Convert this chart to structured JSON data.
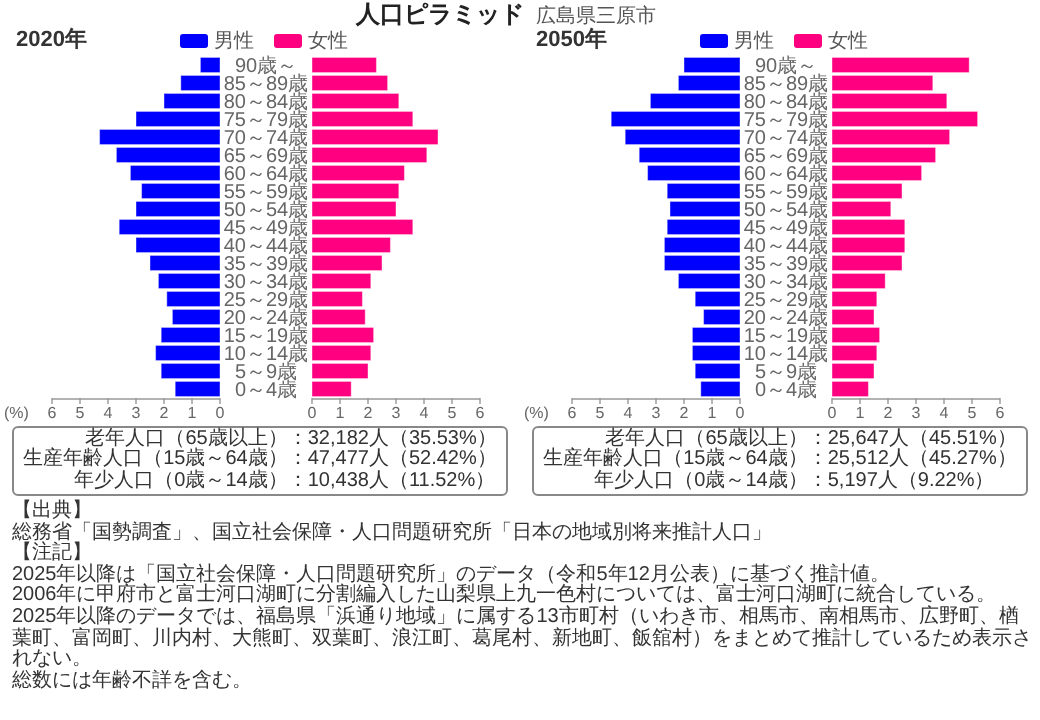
{
  "chart_data": [
    {
      "type": "other",
      "title": "人口ピラミッド",
      "subtitle": "広島県三原市"
    },
    {
      "type": "bar",
      "orientation": "horizontal",
      "title": "2020年",
      "legend": "top",
      "annotations": [
        "(%)"
      ],
      "xlim": [
        6,
        0
      ],
      "xticks": [
        6,
        5,
        4,
        3,
        2,
        1,
        0
      ],
      "categories": [
        "90歳～",
        "85～89歳",
        "80～84歳",
        "75～79歳",
        "70～74歳",
        "65～69歳",
        "60～64歳",
        "55～59歳",
        "50～54歳",
        "45～49歳",
        "40～44歳",
        "35～39歳",
        "30～34歳",
        "25～29歳",
        "20～24歳",
        "15～19歳",
        "10～14歳",
        "5～9歳",
        "0～4歳"
      ],
      "series": [
        {
          "name": "男性",
          "color": "#0000ff",
          "values": [
            0.7,
            1.4,
            2.0,
            3.0,
            4.3,
            3.7,
            3.2,
            2.8,
            3.0,
            3.6,
            3.0,
            2.5,
            2.2,
            1.9,
            1.7,
            2.1,
            2.3,
            2.1,
            1.6
          ]
        }
      ]
    },
    {
      "type": "bar",
      "orientation": "horizontal",
      "legend": "top",
      "xlim": [
        0,
        6
      ],
      "xticks": [
        0,
        1,
        2,
        3,
        4,
        5,
        6
      ],
      "categories": [
        null,
        null,
        null,
        null,
        null,
        null,
        null,
        null,
        null,
        null,
        null,
        null,
        null,
        null,
        null,
        null,
        null,
        null,
        null
      ],
      "series": [
        {
          "name": "女性",
          "color": "#ff0080",
          "values": [
            2.3,
            2.7,
            3.1,
            3.6,
            4.5,
            4.1,
            3.3,
            3.1,
            3.0,
            3.6,
            2.8,
            2.5,
            2.1,
            1.8,
            1.9,
            2.2,
            2.1,
            2.0,
            1.4
          ]
        }
      ]
    },
    {
      "type": "bar",
      "orientation": "horizontal",
      "title": "2050年",
      "legend": "top",
      "annotations": [
        "(%)"
      ],
      "xlim": [
        6,
        0
      ],
      "xticks": [
        6,
        5,
        4,
        3,
        2,
        1,
        0
      ],
      "categories": [
        "90歳～",
        "85～89歳",
        "80～84歳",
        "75～79歳",
        "70～74歳",
        "65～69歳",
        "60～64歳",
        "55～59歳",
        "50～54歳",
        "45～49歳",
        "40～44歳",
        "35～39歳",
        "30～34歳",
        "25～29歳",
        "20～24歳",
        "15～19歳",
        "10～14歳",
        "5～9歳",
        "0～4歳"
      ],
      "series": [
        {
          "name": "男性",
          "color": "#0000ff",
          "values": [
            2.0,
            2.2,
            3.2,
            4.6,
            4.1,
            3.6,
            3.3,
            2.6,
            2.5,
            2.6,
            2.7,
            2.7,
            2.2,
            1.6,
            1.3,
            1.7,
            1.7,
            1.6,
            1.4
          ]
        }
      ]
    },
    {
      "type": "bar",
      "orientation": "horizontal",
      "legend": "top",
      "xlim": [
        0,
        6
      ],
      "xticks": [
        0,
        1,
        2,
        3,
        4,
        5,
        6
      ],
      "categories": [
        null,
        null,
        null,
        null,
        null,
        null,
        null,
        null,
        null,
        null,
        null,
        null,
        null,
        null,
        null,
        null,
        null,
        null,
        null
      ],
      "series": [
        {
          "name": "女性",
          "color": "#ff0080",
          "values": [
            4.9,
            3.6,
            4.1,
            5.2,
            4.2,
            3.7,
            3.2,
            2.5,
            2.1,
            2.6,
            2.6,
            2.5,
            1.9,
            1.6,
            1.5,
            1.7,
            1.6,
            1.5,
            1.3
          ]
        }
      ]
    },
    {
      "type": "other",
      "annotations": [
        "老年人口（65歳以上）",
        "：32,182人（35.53%）",
        "生産年齢人口（15歳～64歳）",
        "：47,477人（52.42%）",
        "年少人口（0歳～14歳）",
        "：10,438人（11.52%）"
      ]
    },
    {
      "type": "other",
      "annotations": [
        "老年人口（65歳以上）",
        "：25,647人（45.51%）",
        "生産年齢人口（15歳～64歳）",
        "：25,512人（45.27%）",
        "年少人口（0歳～14歳）",
        "：5,197人（9.22%）"
      ]
    },
    {
      "type": "other",
      "annotations": [
        "【出典】",
        "総務省「国勢調査」、国立社会保障・人口問題研究所「日本の地域別将来推計人口」",
        "【注記】",
        "2025年以降は「国立社会保障・人口問題研究所」のデータ（令和5年12月公表）に基づく推計値。",
        "2006年に甲府市と富士河口湖町に分割編入した山梨県上九一色村については、富士河口湖町に統合している。",
        "2025年以降のデータでは、福島県「浜通り地域」に属する13市町村（いわき市、相馬市、南相馬市、広野町、楢葉町、富岡町、川内村、大熊町、双葉町、浪江町、葛尾村、新地町、飯舘村）をまとめて推計しているため表示されない。",
        "総数には年齢不詳を含む。"
      ]
    }
  ]
}
